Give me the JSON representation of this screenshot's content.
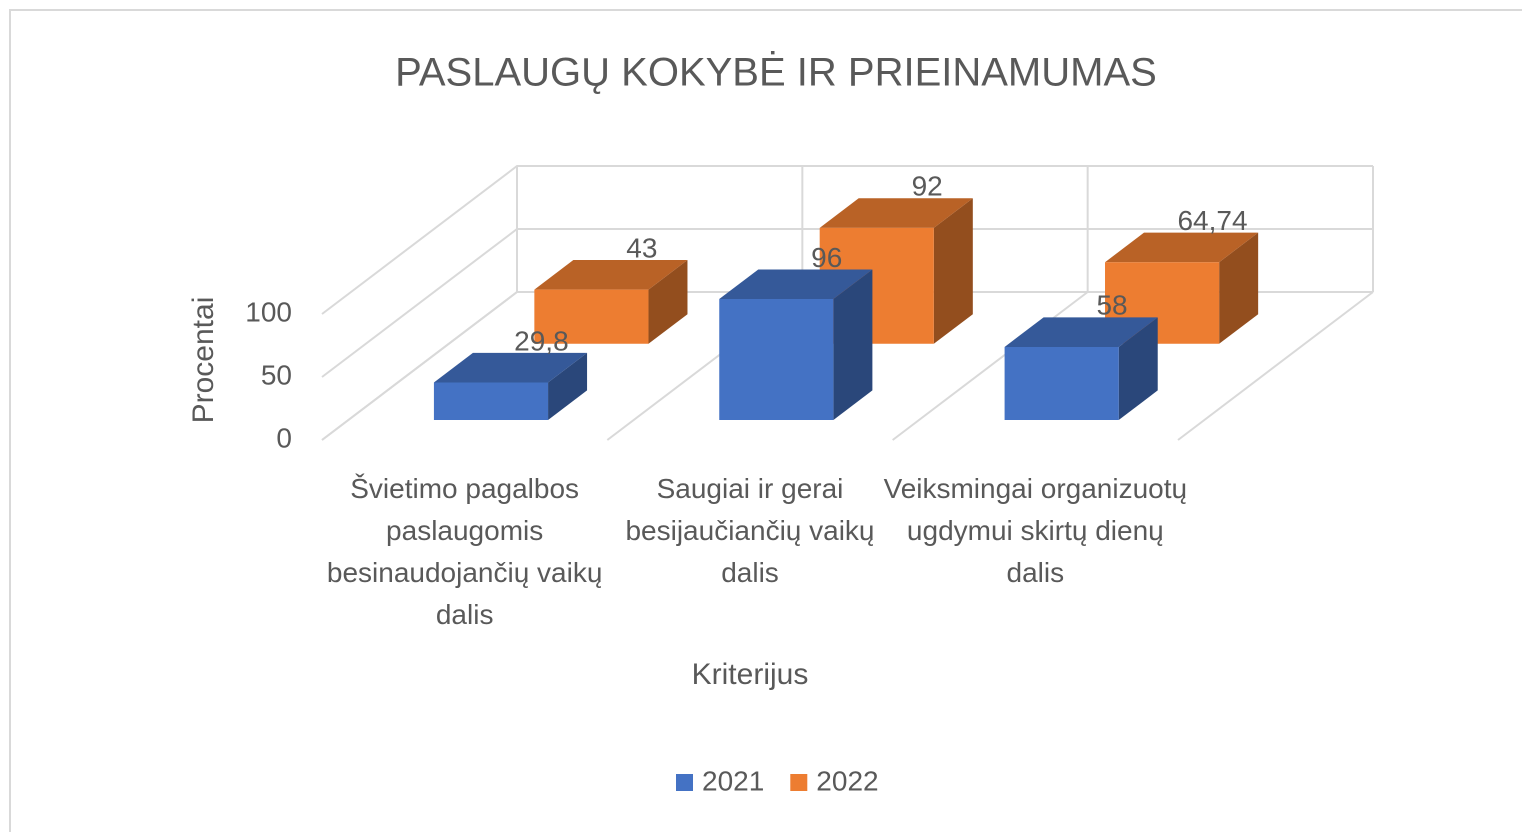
{
  "chart_data": {
    "type": "bar3d",
    "title": "PASLAUGŲ KOKYBĖ IR PRIEINAMUMAS",
    "x_label": "Kriterijus",
    "y_label": "Procentai",
    "categories": [
      "Švietimo pagalbos paslaugomis besinaudojančių vaikų dalis",
      "Saugiai ir gerai besijaučiančių vaikų dalis",
      "Veiksmingai organizuotų ugdymui skirtų dienų dalis"
    ],
    "series": [
      {
        "name": "2021",
        "color": "#4472c4",
        "values": [
          29.8,
          96,
          58
        ],
        "value_labels": [
          "29,8",
          "96",
          "58"
        ]
      },
      {
        "name": "2022",
        "color": "#ed7d31",
        "values": [
          43,
          92,
          64.74
        ],
        "value_labels": [
          "43",
          "92",
          "64,74"
        ]
      }
    ],
    "ylim": [
      0,
      100
    ],
    "yticks": [
      0,
      50,
      100
    ],
    "grid": true,
    "legend": "bottom"
  }
}
